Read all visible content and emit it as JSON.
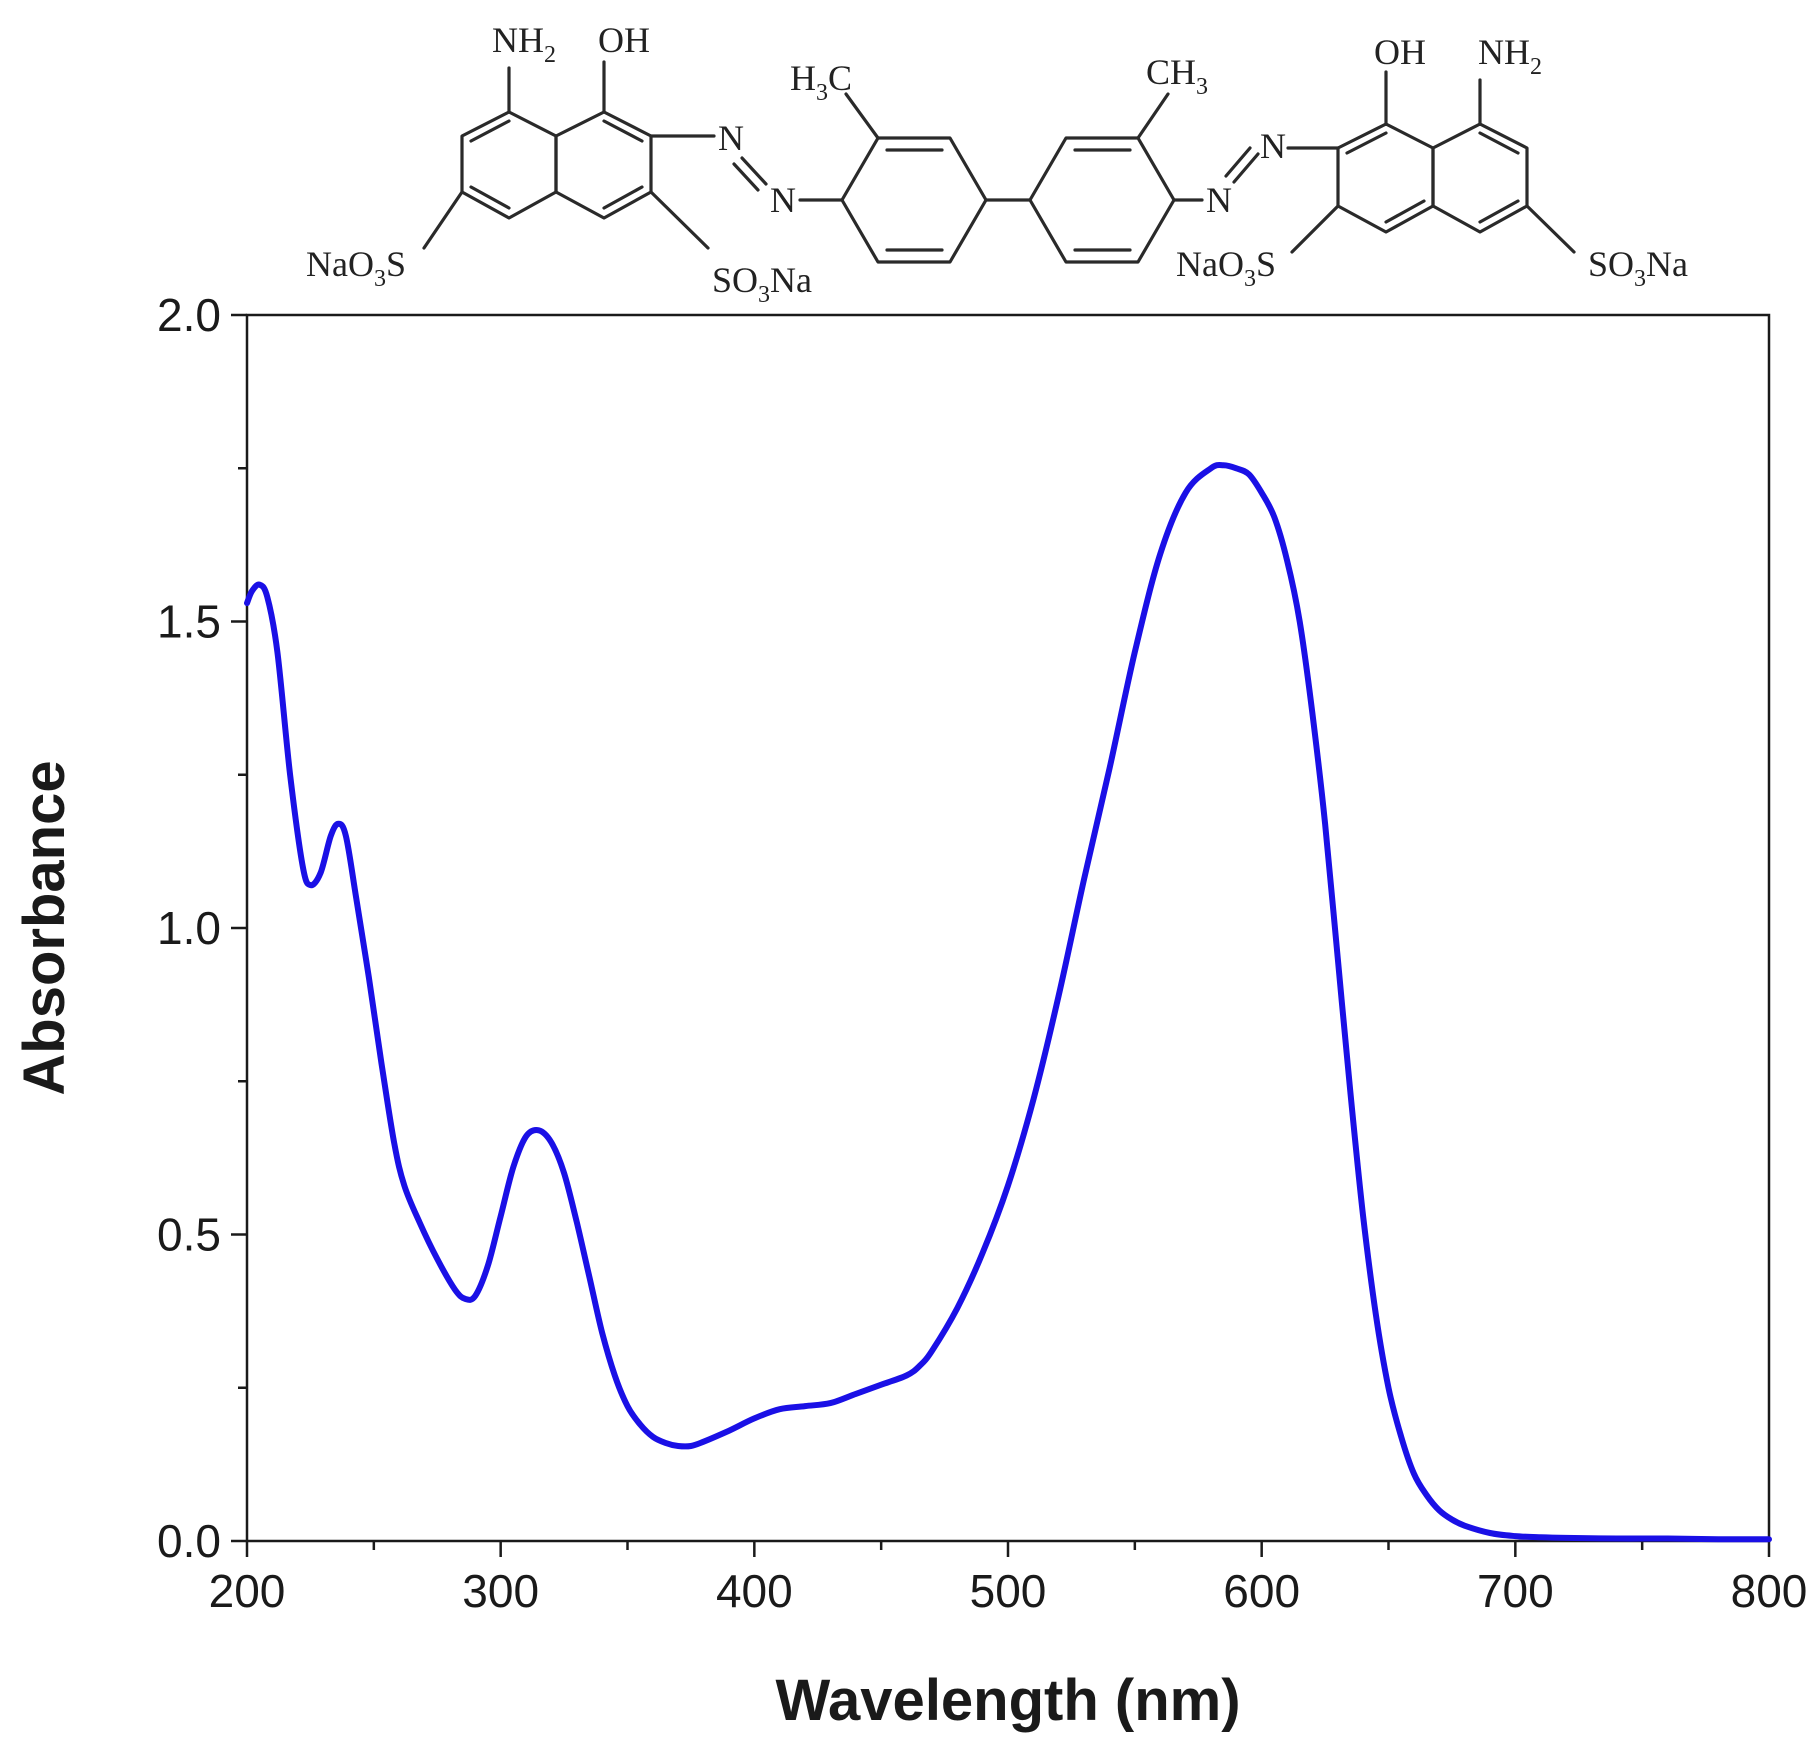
{
  "chart_data": {
    "type": "line",
    "xlabel": "Wavelength (nm)",
    "ylabel": "Absorbance",
    "xlim": [
      200,
      800
    ],
    "ylim": [
      0,
      2.0
    ],
    "x_ticks": [
      "200",
      "300",
      "400",
      "500",
      "600",
      "700",
      "800"
    ],
    "y_ticks": [
      "0.0",
      "0.5",
      "1.0",
      "1.5",
      "2.0"
    ],
    "grid": false,
    "legend": "none",
    "series": [
      {
        "color": "#1a10e6",
        "x": [
          200,
          202,
          205,
          208,
          212,
          217,
          222,
          225,
          229,
          233,
          236,
          239,
          243,
          248,
          253,
          258,
          262,
          268,
          275,
          282,
          286,
          290,
          295,
          300,
          305,
          310,
          315,
          320,
          325,
          330,
          335,
          340,
          345,
          350,
          355,
          360,
          365,
          370,
          375,
          380,
          390,
          400,
          410,
          420,
          430,
          440,
          450,
          460,
          465,
          470,
          480,
          490,
          500,
          510,
          520,
          530,
          540,
          550,
          560,
          570,
          580,
          585,
          590,
          595,
          600,
          605,
          610,
          615,
          620,
          625,
          630,
          635,
          640,
          645,
          650,
          655,
          660,
          665,
          670,
          675,
          680,
          690,
          700,
          710,
          720,
          740,
          760,
          780,
          800
        ],
        "y": [
          1.53,
          1.55,
          1.56,
          1.54,
          1.45,
          1.25,
          1.1,
          1.07,
          1.09,
          1.15,
          1.17,
          1.15,
          1.05,
          0.92,
          0.78,
          0.65,
          0.58,
          0.52,
          0.46,
          0.41,
          0.395,
          0.4,
          0.45,
          0.53,
          0.61,
          0.66,
          0.67,
          0.65,
          0.6,
          0.52,
          0.43,
          0.34,
          0.27,
          0.22,
          0.19,
          0.17,
          0.16,
          0.155,
          0.155,
          0.162,
          0.18,
          0.2,
          0.215,
          0.22,
          0.225,
          0.24,
          0.255,
          0.27,
          0.285,
          0.31,
          0.38,
          0.47,
          0.58,
          0.72,
          0.89,
          1.08,
          1.26,
          1.45,
          1.61,
          1.71,
          1.75,
          1.755,
          1.75,
          1.74,
          1.71,
          1.67,
          1.6,
          1.5,
          1.35,
          1.17,
          0.95,
          0.73,
          0.53,
          0.37,
          0.25,
          0.17,
          0.11,
          0.075,
          0.05,
          0.035,
          0.025,
          0.013,
          0.008,
          0.006,
          0.005,
          0.004,
          0.004,
          0.003,
          0.003
        ]
      }
    ]
  },
  "structure": {
    "nh2_left": "NH",
    "nh2_left_sub": "2",
    "oh_left": "OH",
    "h3c_a": "H",
    "h3c_sub": "3",
    "h3c_b": "C",
    "ch3_a": "CH",
    "ch3_sub": "3",
    "oh_right": "OH",
    "nh2_right": "NH",
    "nh2_right_sub": "2",
    "azo_n": "N",
    "nao3s_a": "NaO",
    "nao3s_sub": "3",
    "nao3s_b": "S",
    "so3na_a": "SO",
    "so3na_sub": "3",
    "so3na_b": "Na"
  }
}
